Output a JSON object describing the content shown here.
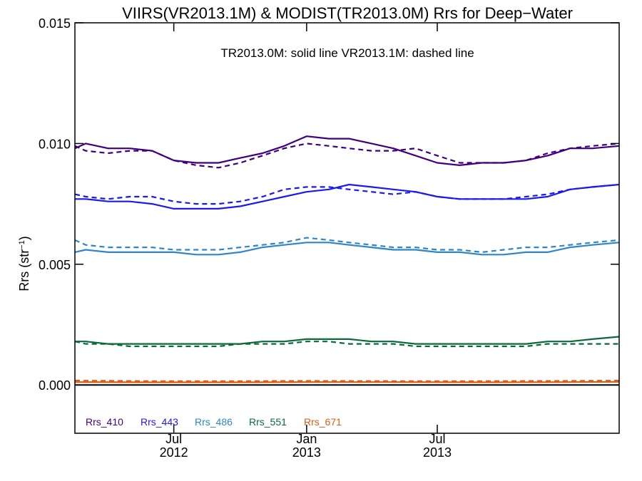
{
  "chart_data": {
    "type": "line",
    "title": "VIIRS(VR2013.1M) & MODIST(TR2013.0M)  Rrs for Deep−Water",
    "annotation": "TR2013.0M: solid line   VR2013.1M: dashed line",
    "ylabel": "Rrs (str",
    "ylabel_sup": "−1",
    "ylabel_end": ")",
    "xlabel": "",
    "xlim": [
      "2012-02-15",
      "2014-03-10"
    ],
    "ylim": [
      -0.002,
      0.015
    ],
    "y_ticks": [
      0.0,
      0.005,
      0.01,
      0.015
    ],
    "y_tick_labels": [
      "0.000",
      "0.005",
      "0.010",
      "0.015"
    ],
    "x_ticks": [
      {
        "date": "2012-07-01",
        "label1": "Jul",
        "label2": "2012"
      },
      {
        "date": "2013-01-01",
        "label1": "Jan",
        "label2": "2013"
      },
      {
        "date": "2013-07-01",
        "label1": "Jul",
        "label2": "2013"
      }
    ],
    "zero_line": true,
    "grid": false,
    "legend_placement": "bottom-left",
    "line_styles": {
      "TR2013.0M": "solid",
      "VR2013.1M": "dashed"
    },
    "series": [
      {
        "name": "Rrs_410",
        "color": "#3f0080",
        "dates": [
          "2012-02-15",
          "2012-03-01",
          "2012-04-01",
          "2012-05-01",
          "2012-06-01",
          "2012-07-01",
          "2012-08-01",
          "2012-09-01",
          "2012-10-01",
          "2012-11-01",
          "2012-12-01",
          "2013-01-01",
          "2013-02-01",
          "2013-03-01",
          "2013-04-01",
          "2013-05-01",
          "2013-06-01",
          "2013-07-01",
          "2013-08-01",
          "2013-09-01",
          "2013-10-01",
          "2013-11-01",
          "2013-12-01",
          "2014-01-01",
          "2014-02-01",
          "2014-03-10"
        ],
        "solid": [
          0.0098,
          0.01,
          0.0098,
          0.0098,
          0.0097,
          0.0093,
          0.0092,
          0.0092,
          0.0094,
          0.0096,
          0.0099,
          0.0103,
          0.0102,
          0.0102,
          0.01,
          0.0098,
          0.0095,
          0.0092,
          0.0091,
          0.0092,
          0.0092,
          0.0093,
          0.0095,
          0.0098,
          0.0098,
          0.0099
        ],
        "dashed": [
          0.0099,
          0.0097,
          0.0096,
          0.0097,
          0.0097,
          0.0093,
          0.0091,
          0.009,
          0.0092,
          0.0095,
          0.0098,
          0.01,
          0.0099,
          0.0098,
          0.0097,
          0.0097,
          0.0098,
          0.0095,
          0.0092,
          0.0092,
          0.0092,
          0.0093,
          0.0096,
          0.0098,
          0.0099,
          0.01
        ]
      },
      {
        "name": "Rrs_443",
        "color": "#1a1aee",
        "dates": [
          "2012-02-15",
          "2012-03-01",
          "2012-04-01",
          "2012-05-01",
          "2012-06-01",
          "2012-07-01",
          "2012-08-01",
          "2012-09-01",
          "2012-10-01",
          "2012-11-01",
          "2012-12-01",
          "2013-01-01",
          "2013-02-01",
          "2013-03-01",
          "2013-04-01",
          "2013-05-01",
          "2013-06-01",
          "2013-07-01",
          "2013-08-01",
          "2013-09-01",
          "2013-10-01",
          "2013-11-01",
          "2013-12-01",
          "2014-01-01",
          "2014-02-01",
          "2014-03-10"
        ],
        "solid": [
          0.0077,
          0.0077,
          0.0076,
          0.0076,
          0.0075,
          0.0073,
          0.0073,
          0.0073,
          0.0074,
          0.0076,
          0.0078,
          0.008,
          0.0081,
          0.0083,
          0.0082,
          0.0081,
          0.008,
          0.0078,
          0.0077,
          0.0077,
          0.0077,
          0.0077,
          0.0078,
          0.0081,
          0.0082,
          0.0083
        ],
        "dashed": [
          0.0079,
          0.0078,
          0.0077,
          0.0078,
          0.0078,
          0.0076,
          0.0075,
          0.0075,
          0.0076,
          0.0078,
          0.0081,
          0.0082,
          0.0082,
          0.0081,
          0.008,
          0.0079,
          0.008,
          0.0078,
          0.0077,
          0.0077,
          0.0077,
          0.0078,
          0.0079,
          0.0081,
          0.0082,
          0.0083
        ]
      },
      {
        "name": "Rrs_486",
        "color": "#2e86c8",
        "dates": [
          "2012-02-15",
          "2012-03-01",
          "2012-04-01",
          "2012-05-01",
          "2012-06-01",
          "2012-07-01",
          "2012-08-01",
          "2012-09-01",
          "2012-10-01",
          "2012-11-01",
          "2012-12-01",
          "2013-01-01",
          "2013-02-01",
          "2013-03-01",
          "2013-04-01",
          "2013-05-01",
          "2013-06-01",
          "2013-07-01",
          "2013-08-01",
          "2013-09-01",
          "2013-10-01",
          "2013-11-01",
          "2013-12-01",
          "2014-01-01",
          "2014-02-01",
          "2014-03-10"
        ],
        "solid": [
          0.0055,
          0.0056,
          0.0055,
          0.0055,
          0.0055,
          0.0055,
          0.0054,
          0.0054,
          0.0055,
          0.0057,
          0.0058,
          0.0059,
          0.0059,
          0.0058,
          0.0057,
          0.0056,
          0.0056,
          0.0055,
          0.0055,
          0.0054,
          0.0054,
          0.0055,
          0.0055,
          0.0057,
          0.0058,
          0.0059
        ],
        "dashed": [
          0.006,
          0.0058,
          0.0057,
          0.0057,
          0.0057,
          0.0056,
          0.0056,
          0.0056,
          0.0057,
          0.0058,
          0.0059,
          0.0061,
          0.006,
          0.0059,
          0.0058,
          0.0057,
          0.0057,
          0.0056,
          0.0056,
          0.0055,
          0.0056,
          0.0057,
          0.0057,
          0.0058,
          0.0059,
          0.006
        ]
      },
      {
        "name": "Rrs_551",
        "color": "#0a6b3a",
        "dates": [
          "2012-02-15",
          "2012-03-01",
          "2012-04-01",
          "2012-05-01",
          "2012-06-01",
          "2012-07-01",
          "2012-08-01",
          "2012-09-01",
          "2012-10-01",
          "2012-11-01",
          "2012-12-01",
          "2013-01-01",
          "2013-02-01",
          "2013-03-01",
          "2013-04-01",
          "2013-05-01",
          "2013-06-01",
          "2013-07-01",
          "2013-08-01",
          "2013-09-01",
          "2013-10-01",
          "2013-11-01",
          "2013-12-01",
          "2014-01-01",
          "2014-02-01",
          "2014-03-10"
        ],
        "solid": [
          0.0018,
          0.0018,
          0.0017,
          0.0017,
          0.0017,
          0.0017,
          0.0017,
          0.0017,
          0.0017,
          0.0018,
          0.0018,
          0.0019,
          0.0019,
          0.0019,
          0.0018,
          0.0018,
          0.0017,
          0.0017,
          0.0017,
          0.0017,
          0.0017,
          0.0017,
          0.0018,
          0.0018,
          0.0019,
          0.002
        ],
        "dashed": [
          0.0018,
          0.0017,
          0.0017,
          0.0016,
          0.0016,
          0.0016,
          0.0016,
          0.0016,
          0.0017,
          0.0017,
          0.0017,
          0.0018,
          0.0018,
          0.0017,
          0.0017,
          0.0017,
          0.0016,
          0.0016,
          0.0016,
          0.0016,
          0.0016,
          0.0016,
          0.0017,
          0.0017,
          0.0017,
          0.0017
        ]
      },
      {
        "name": "Rrs_671",
        "color": "#e35a10",
        "dates": [
          "2012-02-15",
          "2012-06-01",
          "2012-10-01",
          "2013-01-01",
          "2013-05-01",
          "2013-09-01",
          "2014-01-01",
          "2014-03-10"
        ],
        "solid": [
          0.00012,
          0.00011,
          0.00011,
          0.00012,
          0.00012,
          0.00011,
          0.00012,
          0.00013
        ],
        "dashed": [
          0.00018,
          0.00016,
          0.00016,
          0.00017,
          0.00016,
          0.00016,
          0.00017,
          0.00018
        ]
      }
    ]
  }
}
